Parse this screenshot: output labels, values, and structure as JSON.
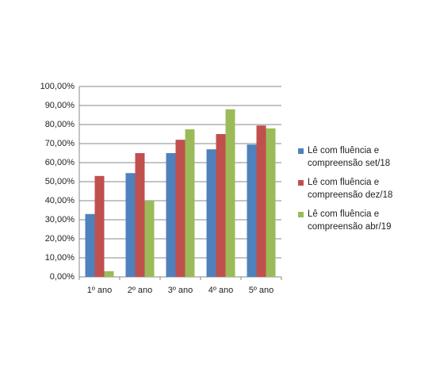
{
  "chart_data": {
    "type": "bar",
    "categories": [
      "1º ano",
      "2º ano",
      "3º ano",
      "4º ano",
      "5º ano"
    ],
    "series": [
      {
        "name": "Lê com fluência e compreensão set/18",
        "color": "#4f81bd",
        "values": [
          33,
          54.5,
          65,
          67,
          69.5
        ]
      },
      {
        "name": "Lê com fluência e compreensão dez/18",
        "color": "#c0504d",
        "values": [
          53,
          65,
          72,
          75,
          79.5
        ]
      },
      {
        "name": "Lê com fluência e compreensão abr/19",
        "color": "#9bbb59",
        "values": [
          3,
          40,
          77.5,
          88,
          78
        ]
      }
    ],
    "ylim": [
      0,
      100
    ],
    "yticks": [
      {
        "value": 0,
        "label": "0,00%"
      },
      {
        "value": 10,
        "label": "10,00%"
      },
      {
        "value": 20,
        "label": "20,00%"
      },
      {
        "value": 30,
        "label": "30,00%"
      },
      {
        "value": 40,
        "label": "40,00%"
      },
      {
        "value": 50,
        "label": "50,00%"
      },
      {
        "value": 60,
        "label": "60,00%"
      },
      {
        "value": 70,
        "label": "70,00%"
      },
      {
        "value": 80,
        "label": "80,00%"
      },
      {
        "value": 90,
        "label": "90,00%"
      },
      {
        "value": 100,
        "label": "100,00%"
      }
    ],
    "grid": true,
    "legend": "right"
  }
}
